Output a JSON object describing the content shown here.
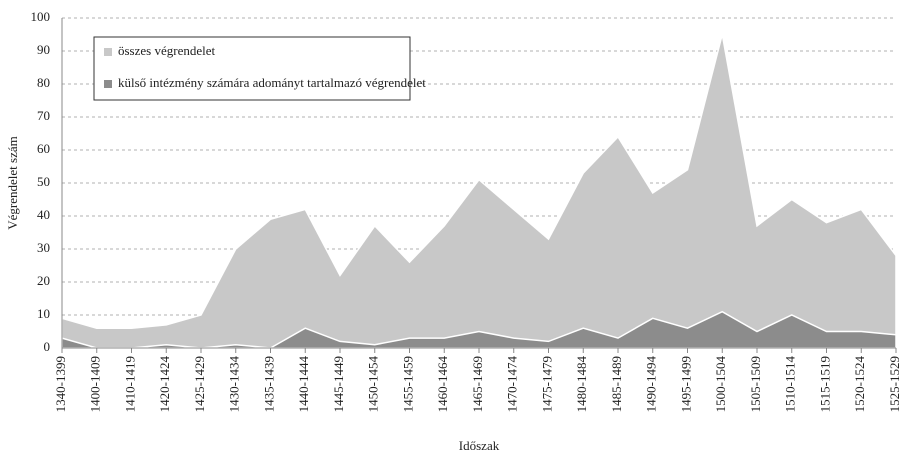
{
  "chart_data": {
    "type": "area",
    "xlabel": "Időszak",
    "ylabel": "Végrendelet szám",
    "categories": [
      "1340-1399",
      "1400-1409",
      "1410-1419",
      "1420-1424",
      "1425-1429",
      "1430-1434",
      "1435-1439",
      "1440-1444",
      "1445-1449",
      "1450-1454",
      "1455-1459",
      "1460-1464",
      "1465-1469",
      "1470-1474",
      "1475-1479",
      "1480-1484",
      "1485-1489",
      "1490-1494",
      "1495-1499",
      "1500-1504",
      "1505-1509",
      "1510-1514",
      "1515-1519",
      "1520-1524",
      "1525-1529"
    ],
    "series": [
      {
        "name": "összes végrendelet",
        "color": "#c8c8c8",
        "values": [
          9,
          6,
          6,
          7,
          10,
          30,
          39,
          42,
          22,
          37,
          26,
          37,
          51,
          42,
          33,
          53,
          64,
          47,
          54,
          95,
          37,
          45,
          38,
          42,
          28
        ]
      },
      {
        "name": "külső intézmény számára adományt tartalmazó végrendelet",
        "color": "#8c8c8c",
        "values": [
          3,
          0,
          0,
          1,
          0,
          1,
          0,
          6,
          2,
          1,
          3,
          3,
          5,
          3,
          2,
          6,
          3,
          9,
          6,
          11,
          5,
          10,
          5,
          5,
          4
        ]
      }
    ],
    "ylim": [
      0,
      100
    ],
    "yticks": [
      0,
      10,
      20,
      30,
      40,
      50,
      60,
      70,
      80,
      90,
      100
    ],
    "grid": true,
    "legend": "upper left"
  }
}
